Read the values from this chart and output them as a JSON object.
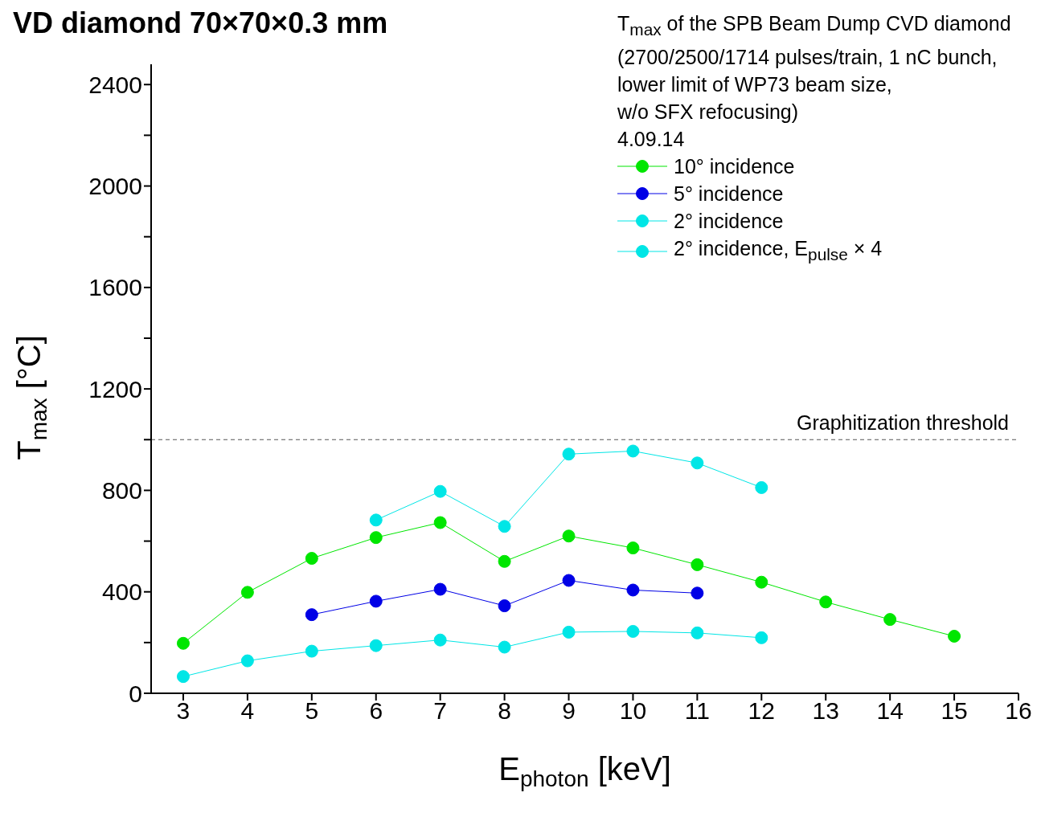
{
  "chart_data": {
    "type": "line",
    "title": "VD diamond 70×70×0.3 mm",
    "xlabel": "E$_{photon}$ [keV]",
    "ylabel": "T$_{max}$ [°C]",
    "legend_title": "T$_{max}$ of the SPB Beam Dump CVD diamond\n(2700/2500/1714 pulses/train, 1 nC bunch,\nlower limit of WP73 beam size,\nw/o SFX refocusing)\n4.09.14",
    "x": [
      3,
      4,
      5,
      6,
      7,
      8,
      9,
      10,
      11,
      12,
      13,
      14,
      15
    ],
    "series": [
      {
        "name": "10° incidence",
        "color": "#00e600",
        "values": [
          197,
          398,
          532,
          614,
          673,
          520,
          620,
          573,
          507,
          438,
          360,
          291,
          225
        ]
      },
      {
        "name": "5° incidence",
        "color": "#0000e6",
        "values": [
          null,
          null,
          310,
          363,
          410,
          345,
          445,
          407,
          395,
          null,
          null,
          null,
          null
        ]
      },
      {
        "name": "2° incidence",
        "color": "#00e6e6",
        "values": [
          66,
          128,
          166,
          188,
          210,
          182,
          241,
          244,
          238,
          219,
          null,
          null,
          null
        ]
      },
      {
        "name": "2° incidence, E$_{pulse}$ × 4",
        "color": "#00e6e6",
        "values": [
          null,
          null,
          null,
          683,
          796,
          658,
          943,
          955,
          908,
          811,
          null,
          null,
          null
        ]
      }
    ],
    "xlim": [
      2.5,
      16
    ],
    "xticks": [
      3,
      4,
      5,
      6,
      7,
      8,
      9,
      10,
      11,
      12,
      13,
      14,
      15,
      16
    ],
    "ylim": [
      0,
      2480
    ],
    "yticks": [
      0,
      {
        "value": 200,
        "label": null
      },
      400,
      {
        "value": 600,
        "label": null
      },
      800,
      {
        "value": 1000,
        "label": null
      },
      1200,
      {
        "value": 1400,
        "label": null
      },
      1600,
      {
        "value": 1800,
        "label": null
      },
      2000,
      {
        "value": 2200,
        "label": null
      },
      2400
    ],
    "ref_lines": [
      {
        "axis": "y",
        "value": 1000,
        "label": "Graphitization threshold",
        "color": "#555555",
        "line_style": "dashed"
      }
    ],
    "marker": "circle",
    "legend": "top right"
  }
}
